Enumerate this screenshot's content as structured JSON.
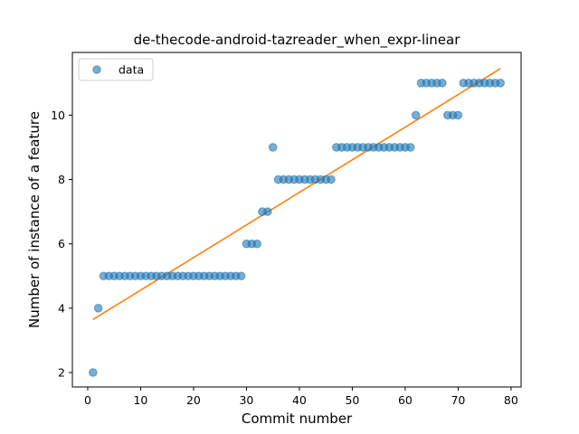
{
  "chart_data": {
    "type": "scatter",
    "title": "de-thecode-android-tazreader_when_expr-linear",
    "xlabel": "Commit number",
    "ylabel": "Number of instance of a feature",
    "xlim": [
      -2.9,
      81.9
    ],
    "ylim": [
      1.55,
      11.95
    ],
    "xticks": [
      0,
      10,
      20,
      30,
      40,
      50,
      60,
      70,
      80
    ],
    "yticks": [
      2,
      4,
      6,
      8,
      10
    ],
    "grid": false,
    "legend": {
      "placement": "upper-left",
      "entries": [
        "data"
      ]
    },
    "colors": {
      "points": "#1f77b4",
      "fit": "#ff7f0e"
    },
    "series": [
      {
        "name": "data",
        "kind": "scatter",
        "x": [
          1,
          2,
          3,
          4,
          5,
          6,
          7,
          8,
          9,
          10,
          11,
          12,
          13,
          14,
          15,
          16,
          17,
          18,
          19,
          20,
          21,
          22,
          23,
          24,
          25,
          26,
          27,
          28,
          29,
          30,
          31,
          32,
          33,
          34,
          35,
          36,
          37,
          38,
          39,
          40,
          41,
          42,
          43,
          44,
          45,
          46,
          47,
          48,
          49,
          50,
          51,
          52,
          53,
          54,
          55,
          56,
          57,
          58,
          59,
          60,
          61,
          62,
          63,
          64,
          65,
          66,
          67,
          68,
          69,
          70,
          71,
          72,
          73,
          74,
          75,
          76,
          77,
          78
        ],
        "y": [
          2,
          4,
          5,
          5,
          5,
          5,
          5,
          5,
          5,
          5,
          5,
          5,
          5,
          5,
          5,
          5,
          5,
          5,
          5,
          5,
          5,
          5,
          5,
          5,
          5,
          5,
          5,
          5,
          5,
          6,
          6,
          6,
          7,
          7,
          9,
          8,
          8,
          8,
          8,
          8,
          8,
          8,
          8,
          8,
          8,
          8,
          9,
          9,
          9,
          9,
          9,
          9,
          9,
          9,
          9,
          9,
          9,
          9,
          9,
          9,
          9,
          10,
          11,
          11,
          11,
          11,
          11,
          10,
          10,
          10,
          11,
          11,
          11,
          11,
          11,
          11,
          11,
          11
        ]
      },
      {
        "kind": "line",
        "x": [
          1,
          78
        ],
        "y": [
          3.65,
          11.45
        ]
      }
    ]
  }
}
